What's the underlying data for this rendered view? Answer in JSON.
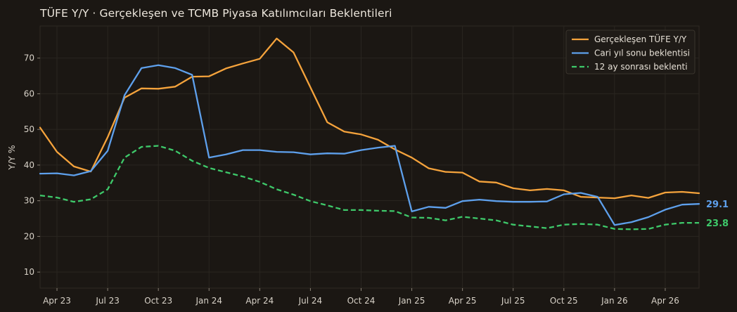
{
  "chart_data": {
    "type": "line",
    "title": "TÜFE Y/Y · Gerçekleşen ve TCMB Piyasa Katılımcıları Beklentileri",
    "xlabel": "",
    "ylabel": "Y/Y %",
    "ylim": [
      5.5,
      79
    ],
    "yticks": [
      10,
      20,
      30,
      40,
      50,
      60,
      70
    ],
    "x": [
      "2023-03",
      "2023-04",
      "2023-05",
      "2023-06",
      "2023-07",
      "2023-08",
      "2023-09",
      "2023-10",
      "2023-11",
      "2023-12",
      "2024-01",
      "2024-02",
      "2024-03",
      "2024-04",
      "2024-05",
      "2024-06",
      "2024-07",
      "2024-08",
      "2024-09",
      "2024-10",
      "2024-11",
      "2024-12",
      "2025-01",
      "2025-02",
      "2025-03",
      "2025-04",
      "2025-05",
      "2025-06",
      "2025-07",
      "2025-08",
      "2025-09",
      "2025-10",
      "2025-11",
      "2025-12",
      "2026-01",
      "2026-02",
      "2026-03",
      "2026-04",
      "2026-05",
      "2026-06"
    ],
    "xtick_labels": [
      "Apr 23",
      "Jul 23",
      "Oct 23",
      "Jan 24",
      "Apr 24",
      "Jul 24",
      "Oct 24",
      "Jan 25",
      "Apr 25",
      "Jul 25",
      "Oct 25",
      "Jan 26",
      "Apr 26"
    ],
    "xtick_months": [
      "2023-04",
      "2023-07",
      "2023-10",
      "2024-01",
      "2024-04",
      "2024-07",
      "2024-10",
      "2025-01",
      "2025-04",
      "2025-07",
      "2025-10",
      "2026-01",
      "2026-04"
    ],
    "grid": true,
    "legend_position": "top-right",
    "series": [
      {
        "name": "Gerçekleşen TÜFE Y/Y",
        "color": "#f5a33c",
        "style": "solid",
        "values": [
          50.5,
          43.7,
          39.6,
          38.2,
          47.8,
          58.9,
          61.5,
          61.4,
          62.0,
          64.8,
          64.9,
          67.1,
          68.5,
          69.8,
          75.5,
          71.6,
          61.8,
          52.0,
          49.4,
          48.6,
          47.1,
          44.4,
          42.1,
          39.1,
          38.1,
          37.9,
          35.4,
          35.1,
          33.5,
          32.9,
          33.3,
          32.9,
          31.1,
          30.9,
          30.7,
          31.5,
          30.8,
          32.3,
          32.5,
          32.1
        ]
      },
      {
        "name": "Cari yıl sonu beklentisi",
        "color": "#5ea0ec",
        "style": "solid",
        "values": [
          37.6,
          37.7,
          37.1,
          38.3,
          44.0,
          59.6,
          67.2,
          68.0,
          67.2,
          65.3,
          42.1,
          43.0,
          44.2,
          44.2,
          43.7,
          43.6,
          43.0,
          43.3,
          43.2,
          44.2,
          44.9,
          45.4,
          27.0,
          28.3,
          28.0,
          29.9,
          30.3,
          29.9,
          29.7,
          29.7,
          29.8,
          31.8,
          32.2,
          31.1,
          23.2,
          24.0,
          25.4,
          27.5,
          28.9,
          29.1
        ]
      },
      {
        "name": "12 ay sonrası beklenti",
        "color": "#3ec96a",
        "style": "dashed",
        "values": [
          31.5,
          30.9,
          29.7,
          30.4,
          33.2,
          42.1,
          45.1,
          45.4,
          44.0,
          41.2,
          39.2,
          38.0,
          36.8,
          35.3,
          33.2,
          31.7,
          29.9,
          28.7,
          27.4,
          27.4,
          27.2,
          27.1,
          25.3,
          25.2,
          24.5,
          25.5,
          25.0,
          24.5,
          23.3,
          22.8,
          22.3,
          23.3,
          23.5,
          23.3,
          22.1,
          22.0,
          22.1,
          23.3,
          23.8,
          23.8
        ]
      }
    ],
    "end_labels": [
      {
        "text": "29.1",
        "color": "#5ea0ec",
        "value": 29.1
      },
      {
        "text": "23.8",
        "color": "#3ec96a",
        "value": 23.8
      }
    ]
  },
  "colors": {
    "background": "#1b1713",
    "plot_background": "#1b1713",
    "grid": "#2a2620",
    "axis": "#3a342c",
    "text": "#d8d2c8"
  }
}
